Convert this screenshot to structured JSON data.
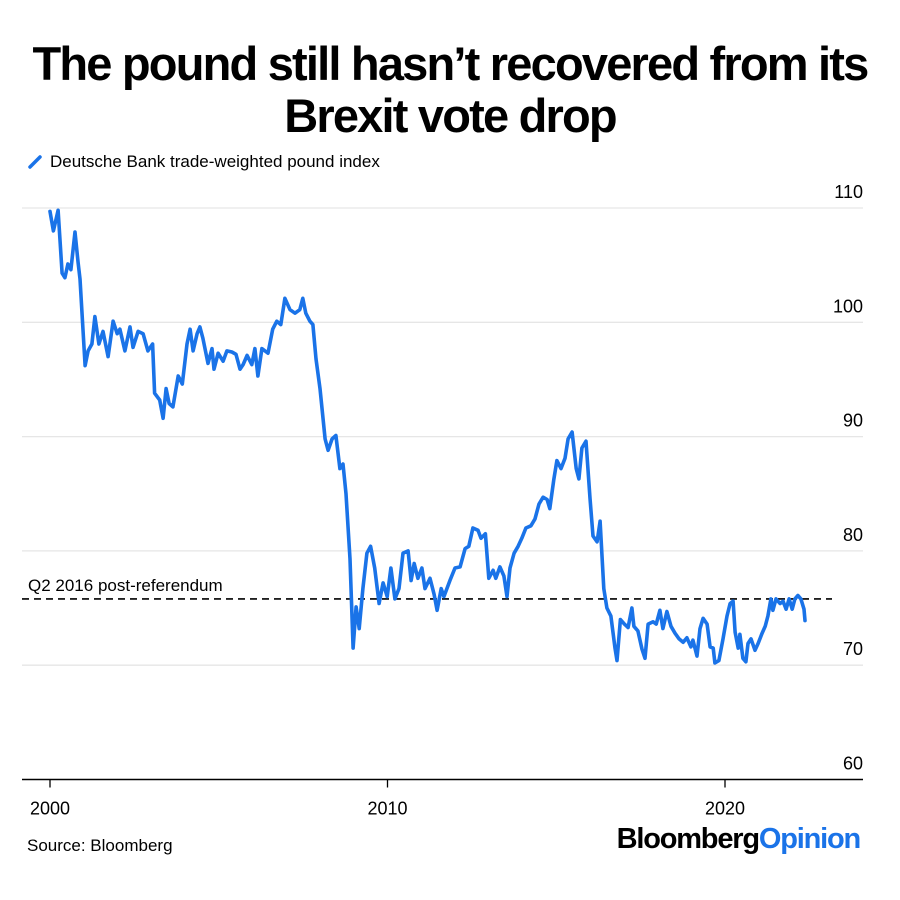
{
  "chart_data": {
    "type": "line",
    "title": "The pound still hasn’t recovered from its Brexit vote drop",
    "legend": "top-left",
    "xlabel": "",
    "ylabel": "",
    "xlim": [
      1999.2,
      2024.2
    ],
    "ylim": [
      60,
      110
    ],
    "x_ticks": [
      2000,
      2010,
      2020
    ],
    "x_tick_labels": [
      "2000",
      "2010",
      "2020"
    ],
    "y_ticks": [
      60,
      70,
      80,
      90,
      100,
      110
    ],
    "y_tick_labels": [
      "60",
      "70",
      "80",
      "90",
      "100",
      "110"
    ],
    "grid": "horizontal",
    "series": [
      {
        "name": "Deutsche Bank trade-weighted pound index",
        "color": "#1a73e8",
        "x": [
          2000.0,
          2000.1,
          2000.24,
          2000.36,
          2000.44,
          2000.53,
          2000.62,
          2000.74,
          2000.83,
          2000.89,
          2001.04,
          2001.13,
          2001.24,
          2001.33,
          2001.45,
          2001.57,
          2001.72,
          2001.87,
          2001.99,
          2002.07,
          2002.22,
          2002.37,
          2002.46,
          2002.61,
          2002.76,
          2002.9,
          2003.04,
          2003.1,
          2003.25,
          2003.35,
          2003.44,
          2003.53,
          2003.64,
          2003.8,
          2003.92,
          2004.06,
          2004.15,
          2004.24,
          2004.36,
          2004.44,
          2004.53,
          2004.68,
          2004.8,
          2004.86,
          2004.98,
          2005.13,
          2005.24,
          2005.39,
          2005.51,
          2005.63,
          2005.72,
          2005.84,
          2005.98,
          2006.07,
          2006.16,
          2006.28,
          2006.46,
          2006.6,
          2006.72,
          2006.84,
          2006.96,
          2007.11,
          2007.26,
          2007.4,
          2007.49,
          2007.58,
          2007.7,
          2007.79,
          2007.88,
          2008.0,
          2008.15,
          2008.24,
          2008.36,
          2008.47,
          2008.59,
          2008.68,
          2008.77,
          2008.89,
          2008.98,
          2009.07,
          2009.16,
          2009.27,
          2009.39,
          2009.5,
          2009.62,
          2009.75,
          2009.87,
          2009.99,
          2010.1,
          2010.22,
          2010.34,
          2010.46,
          2010.61,
          2010.7,
          2010.79,
          2010.9,
          2011.02,
          2011.11,
          2011.26,
          2011.38,
          2011.47,
          2011.59,
          2011.67,
          2011.85,
          2012.0,
          2012.15,
          2012.3,
          2012.41,
          2012.53,
          2012.68,
          2012.77,
          2012.9,
          2013.0,
          2013.13,
          2013.21,
          2013.33,
          2013.45,
          2013.54,
          2013.63,
          2013.75,
          2013.87,
          2013.98,
          2014.1,
          2014.25,
          2014.37,
          2014.49,
          2014.61,
          2014.73,
          2014.81,
          2014.93,
          2015.02,
          2015.14,
          2015.26,
          2015.35,
          2015.47,
          2015.59,
          2015.67,
          2015.76,
          2015.88,
          2016.0,
          2016.09,
          2016.21,
          2016.3,
          2016.41,
          2016.5,
          2016.62,
          2016.74,
          2016.8,
          2016.9,
          2017.02,
          2017.13,
          2017.24,
          2017.3,
          2017.42,
          2017.54,
          2017.63,
          2017.72,
          2017.87,
          2017.96,
          2018.07,
          2018.16,
          2018.28,
          2018.4,
          2018.52,
          2018.64,
          2018.76,
          2018.87,
          2018.99,
          2019.05,
          2019.17,
          2019.26,
          2019.35,
          2019.47,
          2019.56,
          2019.65,
          2019.7,
          2019.82,
          2019.94,
          2020.06,
          2020.15,
          2020.24,
          2020.3,
          2020.39,
          2020.44,
          2020.53,
          2020.62,
          2020.68,
          2020.77,
          2020.89,
          2020.98,
          2021.1,
          2021.19,
          2021.27,
          2021.36,
          2021.42,
          2021.51,
          2021.63,
          2021.72,
          2021.81,
          2021.9,
          2021.99,
          2022.07,
          2022.16,
          2022.25,
          2022.34,
          2022.37
        ],
        "y": [
          109.7,
          108.0,
          109.8,
          104.3,
          103.9,
          105.1,
          104.6,
          107.9,
          105.3,
          103.8,
          96.2,
          97.5,
          98.1,
          100.5,
          98.1,
          99.2,
          97.0,
          100.1,
          99.0,
          99.4,
          97.5,
          99.6,
          97.8,
          99.2,
          99.0,
          97.5,
          98.1,
          93.8,
          93.2,
          91.6,
          94.2,
          92.9,
          92.6,
          95.3,
          94.6,
          98.1,
          99.4,
          97.5,
          99.0,
          99.6,
          98.6,
          96.4,
          97.7,
          95.9,
          97.3,
          96.6,
          97.5,
          97.4,
          97.2,
          95.9,
          96.3,
          97.1,
          96.3,
          97.7,
          95.3,
          97.7,
          97.3,
          99.4,
          100.1,
          99.8,
          102.1,
          101.1,
          100.8,
          101.1,
          102.1,
          100.8,
          100.1,
          99.8,
          96.8,
          94.2,
          89.8,
          88.8,
          89.8,
          90.1,
          87.2,
          87.6,
          85.0,
          79.3,
          71.5,
          75.1,
          73.2,
          76.7,
          79.8,
          80.4,
          78.5,
          75.4,
          77.2,
          76.0,
          78.5,
          75.8,
          76.7,
          79.8,
          80.0,
          77.4,
          78.9,
          77.6,
          78.5,
          76.7,
          77.6,
          76.2,
          74.8,
          76.7,
          76.0,
          77.4,
          78.5,
          78.6,
          80.2,
          80.4,
          82.0,
          81.8,
          81.1,
          81.5,
          77.6,
          78.3,
          77.6,
          78.6,
          77.8,
          76.0,
          78.5,
          79.8,
          80.4,
          81.1,
          82.0,
          82.2,
          82.8,
          84.1,
          84.7,
          84.5,
          83.7,
          86.3,
          87.9,
          87.2,
          88.1,
          89.8,
          90.4,
          87.2,
          86.3,
          89.0,
          89.6,
          84.6,
          81.3,
          80.8,
          82.6,
          76.7,
          75.0,
          74.3,
          71.5,
          70.4,
          74.0,
          73.6,
          73.3,
          75.0,
          73.4,
          73.0,
          71.4,
          70.6,
          73.6,
          73.8,
          73.6,
          74.8,
          73.2,
          74.7,
          73.4,
          72.8,
          72.3,
          72.0,
          72.4,
          71.6,
          72.2,
          70.8,
          73.2,
          74.1,
          73.6,
          71.6,
          71.5,
          70.2,
          70.4,
          72.3,
          74.3,
          75.4,
          75.6,
          72.9,
          71.5,
          72.7,
          70.6,
          70.3,
          71.9,
          72.3,
          71.3,
          71.9,
          72.8,
          73.4,
          74.3,
          75.8,
          74.8,
          75.8,
          75.4,
          75.6,
          74.9,
          75.8,
          74.9,
          75.8,
          76.1,
          75.8,
          74.9,
          73.9
        ]
      }
    ],
    "reference_line": {
      "label": "Q2 2016 post-referendum",
      "value": 75.8,
      "style": "dashed",
      "color": "#000000"
    },
    "source": "Source: Bloomberg",
    "brand": {
      "part1": "Bloomberg",
      "part2": "Opinion",
      "accent": "#1a73e8"
    }
  }
}
